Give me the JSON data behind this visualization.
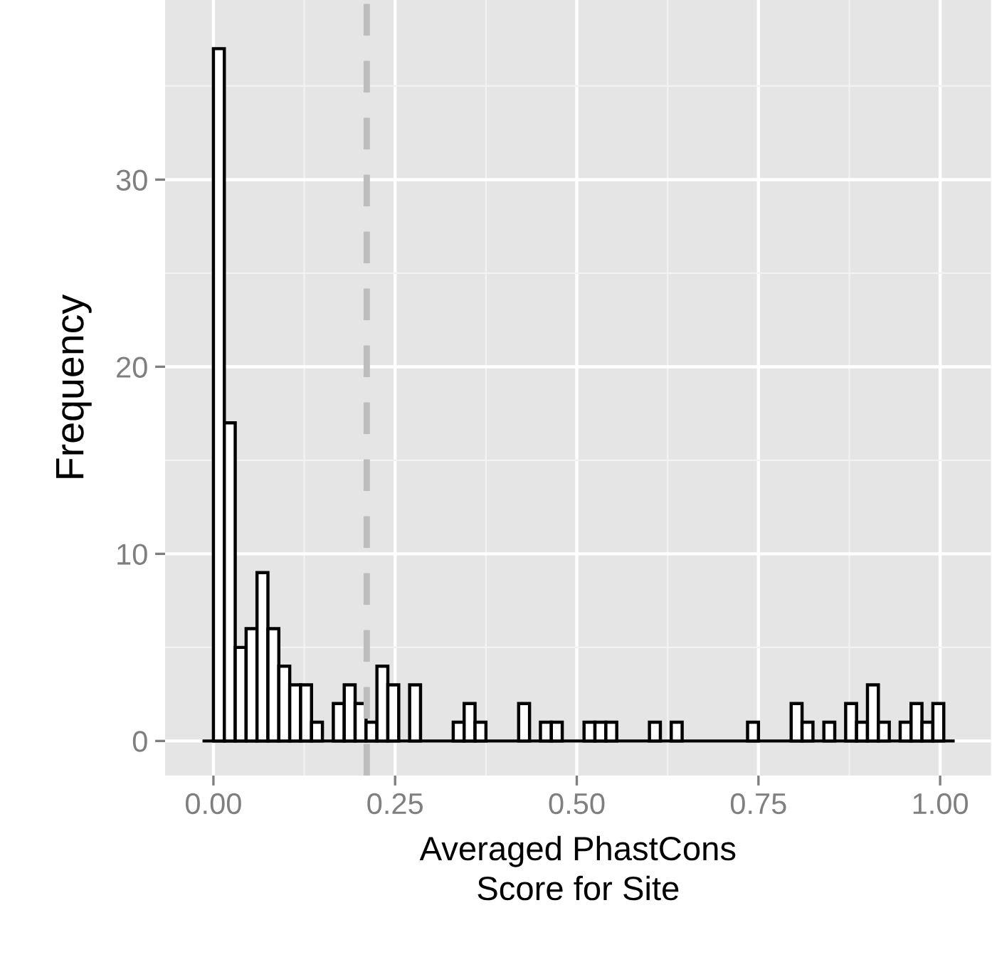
{
  "chart_data": {
    "type": "histogram",
    "xlabel": "Averaged PhastCons\nScore for Site",
    "ylabel": "Frequency",
    "bins": [
      -0.015,
      0,
      0.015,
      0.03,
      0.045,
      0.06,
      0.075,
      0.09,
      0.105,
      0.12,
      0.135,
      0.15,
      0.165,
      0.18,
      0.195,
      0.21,
      0.225,
      0.24,
      0.255,
      0.27,
      0.285,
      0.3,
      0.315,
      0.33,
      0.345,
      0.36,
      0.375,
      0.39,
      0.405,
      0.42,
      0.435,
      0.45,
      0.465,
      0.48,
      0.495,
      0.51,
      0.525,
      0.54,
      0.555,
      0.57,
      0.585,
      0.6,
      0.615,
      0.63,
      0.645,
      0.66,
      0.675,
      0.69,
      0.705,
      0.72,
      0.735,
      0.75,
      0.765,
      0.78,
      0.795,
      0.81,
      0.825,
      0.84,
      0.855,
      0.87,
      0.885,
      0.9,
      0.915,
      0.93,
      0.945,
      0.96,
      0.975,
      0.99,
      1.005,
      1.02
    ],
    "values": [
      0,
      37,
      17,
      5,
      6,
      9,
      6,
      4,
      3,
      3,
      1,
      0,
      2,
      3,
      2,
      1,
      4,
      3,
      0,
      3,
      0,
      0,
      0,
      1,
      2,
      1,
      0,
      0,
      0,
      2,
      0,
      1,
      1,
      0,
      0,
      1,
      1,
      1,
      0,
      0,
      0,
      1,
      0,
      1,
      0,
      0,
      0,
      0,
      0,
      0,
      1,
      0,
      0,
      0,
      2,
      1,
      0,
      1,
      0,
      2,
      1,
      3,
      1,
      0,
      1,
      2,
      1,
      2,
      0
    ],
    "color": "#ffffff",
    "xlim": [
      -0.0665,
      1.07
    ],
    "ylim": [
      -1.85,
      39.6
    ],
    "xticks": [
      {
        "value": 0,
        "label": "0.00"
      },
      0.25,
      {
        "value": 0.5,
        "label": "0.50"
      },
      0.75,
      {
        "value": 1,
        "label": "1.00"
      }
    ],
    "yticks": [
      0,
      10,
      20,
      30
    ],
    "grid": true,
    "ref_lines": [
      {
        "axis": "x",
        "value": 0.211,
        "label": null,
        "color": "#bdbdbd",
        "line_style": "dashed"
      }
    ]
  }
}
